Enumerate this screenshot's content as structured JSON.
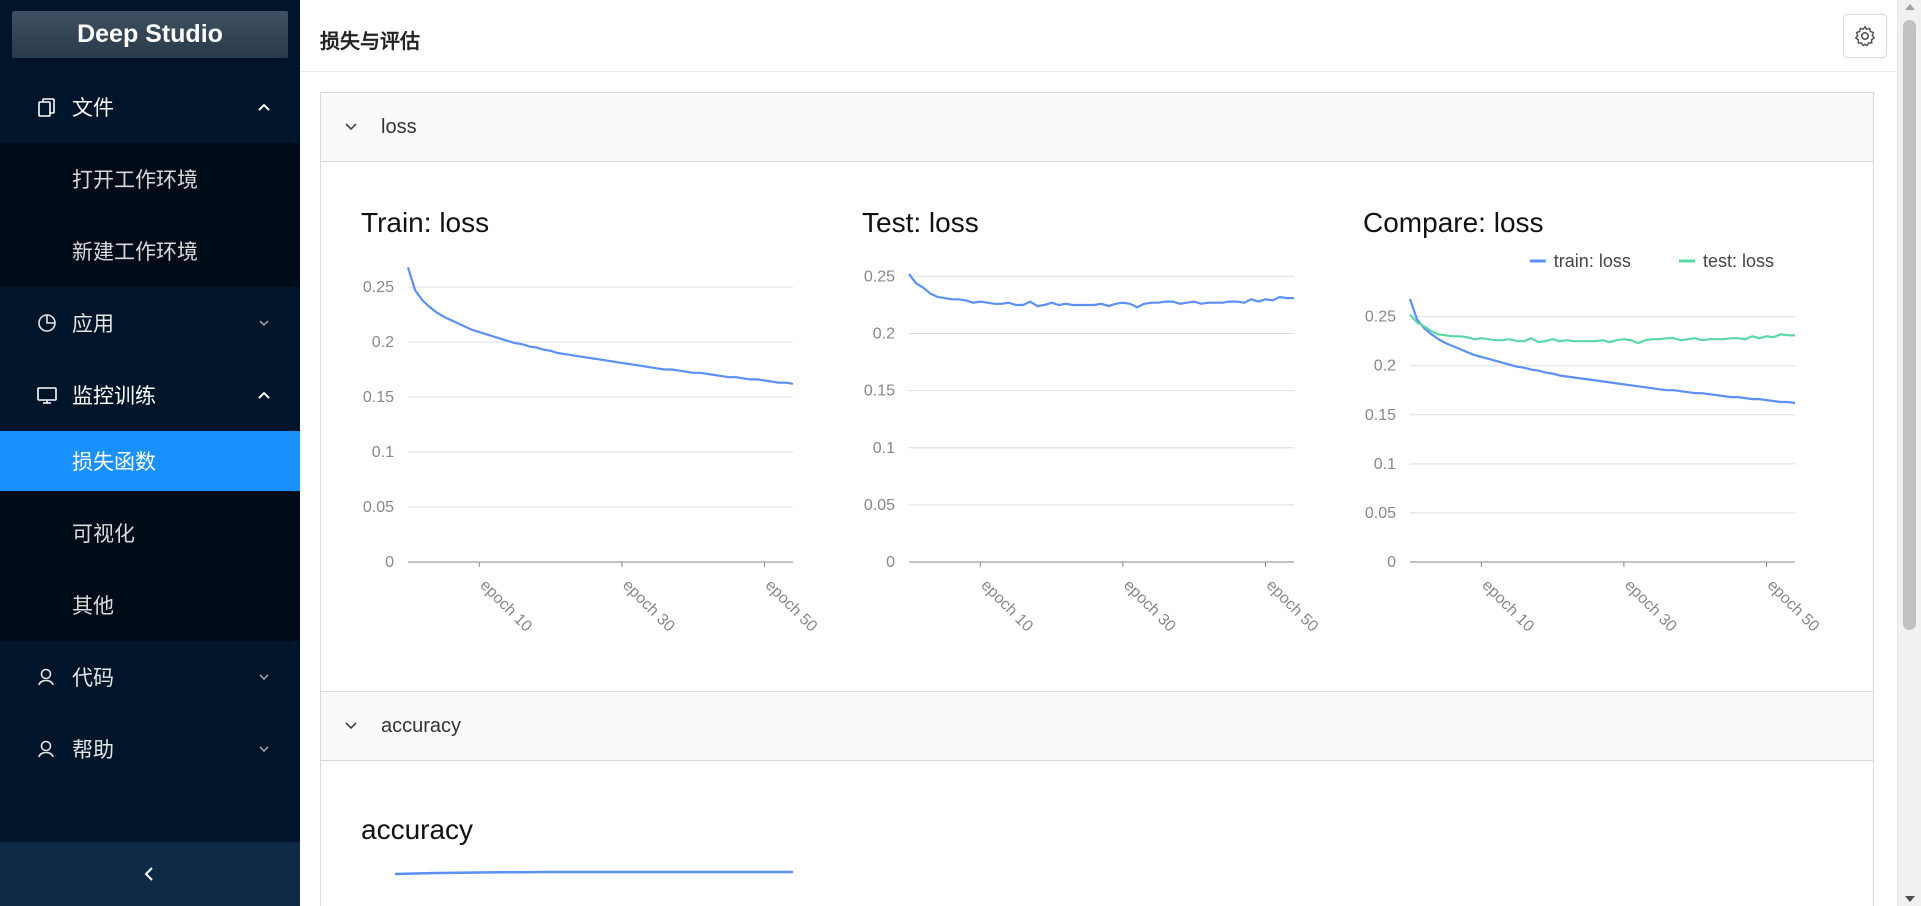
{
  "app": {
    "logo": "Deep Studio"
  },
  "sidebar": {
    "groups": [
      {
        "label": "文件",
        "icon": "copy-icon",
        "expanded": true,
        "children": [
          {
            "label": "打开工作环境"
          },
          {
            "label": "新建工作环境"
          }
        ]
      },
      {
        "label": "应用",
        "icon": "pie-chart-icon",
        "expanded": false,
        "children": []
      },
      {
        "label": "监控训练",
        "icon": "desktop-icon",
        "expanded": true,
        "children": [
          {
            "label": "损失函数",
            "active": true
          },
          {
            "label": "可视化"
          },
          {
            "label": "其他"
          }
        ]
      },
      {
        "label": "代码",
        "icon": "user-icon",
        "expanded": false,
        "children": []
      },
      {
        "label": "帮助",
        "icon": "user-icon",
        "expanded": false,
        "children": []
      }
    ],
    "collapse_icon": "chevron-left-icon"
  },
  "header": {
    "title": "损失与评估",
    "settings_icon": "gear-icon"
  },
  "panels": [
    {
      "title": "loss",
      "expanded": true
    },
    {
      "title": "accuracy",
      "expanded": true
    }
  ],
  "colors": {
    "sidebar_bg": "#001529",
    "active": "#1890ff",
    "train_line": "#5b8ff9",
    "test_line": "#5ad8a6"
  },
  "chart_data": [
    {
      "type": "line",
      "title": "Train: loss",
      "ylim": [
        0,
        0.27
      ],
      "y_ticks": [
        "0",
        "0.05",
        "0.1",
        "0.15",
        "0.2",
        "0.25"
      ],
      "x_ticks": [
        "epoch 10",
        "epoch 30",
        "epoch 50"
      ],
      "grid": true,
      "series": [
        {
          "values": [
            0.268,
            0.247,
            0.238,
            0.232,
            0.227,
            0.223,
            0.22,
            0.217,
            0.214,
            0.211,
            0.209,
            0.207,
            0.205,
            0.203,
            0.201,
            0.199,
            0.198,
            0.196,
            0.195,
            0.193,
            0.192,
            0.19,
            0.189,
            0.188,
            0.187,
            0.186,
            0.185,
            0.184,
            0.183,
            0.182,
            0.181,
            0.18,
            0.179,
            0.178,
            0.177,
            0.176,
            0.175,
            0.175,
            0.174,
            0.173,
            0.172,
            0.172,
            0.171,
            0.17,
            0.169,
            0.168,
            0.168,
            0.167,
            0.166,
            0.166,
            0.165,
            0.164,
            0.163,
            0.163,
            0.162
          ]
        }
      ]
    },
    {
      "type": "line",
      "title": "Test: loss",
      "ylim": [
        0,
        0.26
      ],
      "y_ticks": [
        "0",
        "0.05",
        "0.1",
        "0.15",
        "0.2",
        "0.25"
      ],
      "x_ticks": [
        "epoch 10",
        "epoch 30",
        "epoch 50"
      ],
      "grid": true,
      "series": [
        {
          "values": [
            0.252,
            0.244,
            0.24,
            0.235,
            0.232,
            0.231,
            0.23,
            0.23,
            0.229,
            0.227,
            0.228,
            0.227,
            0.226,
            0.226,
            0.227,
            0.225,
            0.225,
            0.228,
            0.224,
            0.225,
            0.227,
            0.225,
            0.226,
            0.225,
            0.225,
            0.225,
            0.225,
            0.226,
            0.224,
            0.226,
            0.227,
            0.226,
            0.223,
            0.226,
            0.227,
            0.227,
            0.228,
            0.228,
            0.226,
            0.227,
            0.228,
            0.226,
            0.227,
            0.227,
            0.227,
            0.228,
            0.228,
            0.227,
            0.23,
            0.228,
            0.23,
            0.229,
            0.232,
            0.231,
            0.231
          ]
        }
      ]
    },
    {
      "type": "line",
      "title": "Compare: loss",
      "ylim": [
        0,
        0.27
      ],
      "y_ticks": [
        "0",
        "0.05",
        "0.1",
        "0.15",
        "0.2",
        "0.25"
      ],
      "x_ticks": [
        "epoch 10",
        "epoch 30",
        "epoch 50"
      ],
      "grid": true,
      "legend": "top-right",
      "series": [
        {
          "name": "train: loss",
          "color": "#5b8ff9",
          "values": [
            0.268,
            0.247,
            0.238,
            0.232,
            0.227,
            0.223,
            0.22,
            0.217,
            0.214,
            0.211,
            0.209,
            0.207,
            0.205,
            0.203,
            0.201,
            0.199,
            0.198,
            0.196,
            0.195,
            0.193,
            0.192,
            0.19,
            0.189,
            0.188,
            0.187,
            0.186,
            0.185,
            0.184,
            0.183,
            0.182,
            0.181,
            0.18,
            0.179,
            0.178,
            0.177,
            0.176,
            0.175,
            0.175,
            0.174,
            0.173,
            0.172,
            0.172,
            0.171,
            0.17,
            0.169,
            0.168,
            0.168,
            0.167,
            0.166,
            0.166,
            0.165,
            0.164,
            0.163,
            0.163,
            0.162
          ]
        },
        {
          "name": "test: loss",
          "color": "#5ad8a6",
          "values": [
            0.252,
            0.244,
            0.24,
            0.235,
            0.232,
            0.231,
            0.23,
            0.23,
            0.229,
            0.227,
            0.228,
            0.227,
            0.226,
            0.226,
            0.227,
            0.225,
            0.225,
            0.228,
            0.224,
            0.225,
            0.227,
            0.225,
            0.226,
            0.225,
            0.225,
            0.225,
            0.225,
            0.226,
            0.224,
            0.226,
            0.227,
            0.226,
            0.223,
            0.226,
            0.227,
            0.227,
            0.228,
            0.228,
            0.226,
            0.227,
            0.228,
            0.226,
            0.227,
            0.227,
            0.227,
            0.228,
            0.228,
            0.227,
            0.23,
            0.228,
            0.23,
            0.229,
            0.232,
            0.231,
            0.231
          ]
        }
      ]
    },
    {
      "type": "line",
      "title": "accuracy",
      "series": [
        {
          "values": [
            0.94,
            0.942,
            0.944,
            0.945,
            0.946,
            0.947,
            0.947,
            0.948,
            0.948,
            0.948,
            0.948,
            0.948,
            0.948,
            0.948,
            0.948,
            0.948,
            0.948,
            0.948,
            0.948,
            0.948
          ]
        }
      ]
    }
  ]
}
